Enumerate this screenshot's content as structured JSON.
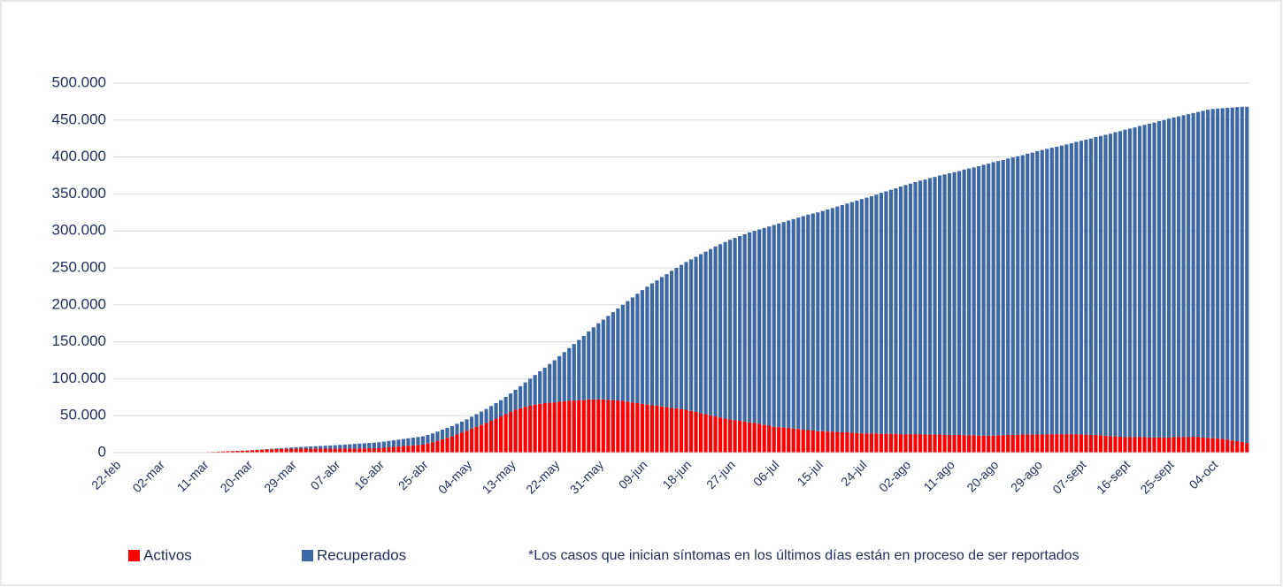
{
  "chart_data": {
    "type": "stacked-bar",
    "categories": [
      "22-feb",
      null,
      null,
      null,
      null,
      null,
      null,
      null,
      null,
      "02-mar",
      null,
      null,
      null,
      null,
      null,
      null,
      null,
      null,
      "11-mar",
      null,
      null,
      null,
      null,
      null,
      null,
      null,
      null,
      "20-mar",
      null,
      null,
      null,
      null,
      null,
      null,
      null,
      null,
      "29-mar",
      null,
      null,
      null,
      null,
      null,
      null,
      null,
      null,
      "07-abr",
      null,
      null,
      null,
      null,
      null,
      null,
      null,
      null,
      "16-abr",
      null,
      null,
      null,
      null,
      null,
      null,
      null,
      null,
      "25-abr",
      null,
      null,
      null,
      null,
      null,
      null,
      null,
      null,
      "04-may",
      null,
      null,
      null,
      null,
      null,
      null,
      null,
      null,
      "13-may",
      null,
      null,
      null,
      null,
      null,
      null,
      null,
      null,
      "22-may",
      null,
      null,
      null,
      null,
      null,
      null,
      null,
      null,
      "31-may",
      null,
      null,
      null,
      null,
      null,
      null,
      null,
      null,
      "09-jun",
      null,
      null,
      null,
      null,
      null,
      null,
      null,
      null,
      "18-jun",
      null,
      null,
      null,
      null,
      null,
      null,
      null,
      null,
      "27-jun",
      null,
      null,
      null,
      null,
      null,
      null,
      null,
      null,
      "06-jul",
      null,
      null,
      null,
      null,
      null,
      null,
      null,
      null,
      "15-jul",
      null,
      null,
      null,
      null,
      null,
      null,
      null,
      null,
      "24-jul",
      null,
      null,
      null,
      null,
      null,
      null,
      null,
      null,
      "02-ago",
      null,
      null,
      null,
      null,
      null,
      null,
      null,
      null,
      "11-ago",
      null,
      null,
      null,
      null,
      null,
      null,
      null,
      null,
      "20-ago",
      null,
      null,
      null,
      null,
      null,
      null,
      null,
      null,
      "29-ago",
      null,
      null,
      null,
      null,
      null,
      null,
      null,
      null,
      "07-sept",
      null,
      null,
      null,
      null,
      null,
      null,
      null,
      null,
      "16-sept",
      null,
      null,
      null,
      null,
      null,
      null,
      null,
      null,
      "25-sept",
      null,
      null,
      null,
      null,
      null,
      null,
      null,
      null,
      "04-oct",
      null,
      null,
      null,
      null,
      null,
      null,
      null
    ],
    "series": [
      {
        "name": "Activos",
        "color": "#ff0000",
        "values": [
          0,
          10,
          20,
          30,
          40,
          50,
          60,
          70,
          90,
          100,
          140,
          190,
          230,
          280,
          320,
          370,
          410,
          460,
          500,
          760,
          1030,
          1290,
          1560,
          1820,
          2090,
          2350,
          2620,
          2880,
          3240,
          3590,
          3930,
          4280,
          4520,
          4770,
          5010,
          5160,
          5300,
          5330,
          5370,
          5400,
          5330,
          5370,
          5400,
          5430,
          5470,
          5500,
          5540,
          5590,
          5630,
          5680,
          5720,
          5770,
          5910,
          5960,
          6000,
          6590,
          7180,
          7670,
          8260,
          8840,
          9330,
          9820,
          10310,
          10800,
          12400,
          14000,
          16000,
          18000,
          20000,
          22000,
          24500,
          27000,
          29500,
          32500,
          35000,
          37500,
          40000,
          43000,
          46000,
          49000,
          52000,
          55000,
          58000,
          60000,
          62000,
          63500,
          65000,
          66000,
          67000,
          67500,
          68000,
          69000,
          69500,
          70000,
          70500,
          71000,
          71000,
          72000,
          72000,
          72000,
          72000,
          71500,
          71000,
          70500,
          70000,
          69000,
          68000,
          67000,
          66000,
          65000,
          64000,
          63500,
          62500,
          61500,
          60500,
          60000,
          59000,
          58000,
          56500,
          55000,
          53500,
          52000,
          50500,
          49000,
          47500,
          46000,
          45000,
          44000,
          43000,
          42000,
          41000,
          40000,
          39000,
          37500,
          36500,
          35000,
          34500,
          34000,
          33500,
          32500,
          32000,
          31000,
          30500,
          30000,
          29000,
          29000,
          28500,
          28500,
          28000,
          27500,
          27500,
          27000,
          26500,
          26000,
          26000,
          26000,
          26000,
          25500,
          25500,
          25500,
          25500,
          25000,
          25000,
          25000,
          25000,
          25000,
          24500,
          24500,
          24500,
          24500,
          24000,
          24000,
          24000,
          24000,
          23500,
          23500,
          23500,
          23000,
          23000,
          23000,
          23000,
          23500,
          23500,
          24000,
          24000,
          24000,
          24500,
          24500,
          24500,
          24500,
          24500,
          25000,
          25000,
          25000,
          25000,
          25000,
          25000,
          25000,
          24500,
          24500,
          24000,
          24000,
          23500,
          23000,
          22500,
          22000,
          21500,
          21000,
          21000,
          21000,
          21000,
          21000,
          20500,
          20500,
          20500,
          20500,
          20500,
          21000,
          21000,
          21000,
          21000,
          21500,
          21000,
          20500,
          20000,
          19500,
          19000,
          18500,
          17500,
          16500,
          15500,
          14500,
          13000
        ]
      },
      {
        "name": "Recuperados",
        "color": "#3d68a6",
        "values": [
          0,
          0,
          0,
          0,
          0,
          0,
          0,
          0,
          0,
          0,
          0,
          0,
          0,
          0,
          0,
          0,
          0,
          0,
          0,
          20,
          30,
          40,
          50,
          70,
          80,
          90,
          100,
          120,
          200,
          300,
          400,
          500,
          700,
          900,
          1100,
          1400,
          1700,
          2000,
          2300,
          2600,
          3000,
          3300,
          3600,
          3900,
          4200,
          4500,
          4900,
          5300,
          5700,
          6100,
          6500,
          6900,
          7200,
          7600,
          8000,
          8300,
          8600,
          9000,
          9300,
          9600,
          10000,
          10400,
          10800,
          11200,
          11600,
          12000,
          12500,
          13000,
          13500,
          14000,
          14500,
          15000,
          15500,
          16000,
          17000,
          18000,
          19000,
          20000,
          21000,
          22000,
          23500,
          25000,
          27000,
          30000,
          33000,
          36500,
          40000,
          44000,
          48000,
          52500,
          57000,
          61500,
          66500,
          71500,
          76500,
          81500,
          87000,
          92000,
          97500,
          103000,
          108000,
          113500,
          119000,
          124500,
          130000,
          136000,
          142000,
          148000,
          154000,
          159500,
          165000,
          169500,
          175000,
          180000,
          185500,
          190000,
          195000,
          200000,
          205000,
          210000,
          215000,
          220000,
          225000,
          230000,
          234500,
          239000,
          243000,
          246500,
          250000,
          253500,
          257000,
          260000,
          263000,
          266500,
          269500,
          273000,
          275500,
          278000,
          280500,
          283500,
          286000,
          289000,
          291500,
          293500,
          296000,
          298000,
          300500,
          302500,
          305000,
          307500,
          309500,
          312000,
          314500,
          317000,
          319000,
          321000,
          323000,
          326000,
          328000,
          330000,
          332000,
          335000,
          337000,
          339000,
          341000,
          343000,
          345000,
          347000,
          348500,
          350500,
          352500,
          354000,
          355500,
          357000,
          359500,
          361000,
          362500,
          364500,
          366500,
          368000,
          370000,
          371000,
          372500,
          374000,
          375500,
          377000,
          378000,
          380000,
          381500,
          383500,
          385000,
          386000,
          387500,
          389000,
          390500,
          392000,
          393500,
          395500,
          397500,
          399000,
          401000,
          403000,
          405000,
          407000,
          409000,
          411500,
          413500,
          416000,
          417500,
          419000,
          421000,
          422500,
          424500,
          426000,
          428000,
          429500,
          431500,
          432500,
          434000,
          435500,
          437000,
          438000,
          440000,
          442000,
          444000,
          445500,
          446500,
          447500,
          449000,
          450500,
          452000,
          453500,
          455000
        ]
      }
    ],
    "ylim": [
      0,
      500000
    ],
    "yticks": [
      0,
      {
        "value": 50000,
        "label": "50.000"
      },
      {
        "value": 100000,
        "label": "100.000"
      },
      {
        "value": 150000,
        "label": "150.000"
      },
      {
        "value": 200000,
        "label": "200.000"
      },
      {
        "value": 250000,
        "label": "250.000"
      },
      {
        "value": 300000,
        "label": "300.000"
      },
      {
        "value": 350000,
        "label": "350.000"
      },
      {
        "value": 400000,
        "label": "400.000"
      },
      {
        "value": 450000,
        "label": "450.000"
      },
      {
        "value": 500000,
        "label": "500.000"
      }
    ],
    "grid": true,
    "legend": "bottom-left",
    "footnote": "*Los casos que inician síntomas en los últimos días están en proceso de ser reportados"
  }
}
